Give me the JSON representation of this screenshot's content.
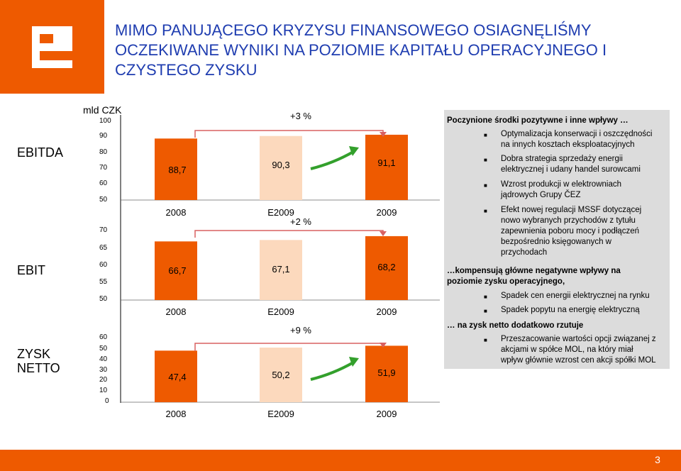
{
  "header": {
    "title_line1": "MIMO PANUJĄCEGO KRYZYSU FINANSOWEGO OSIAGNĘLIŚMY",
    "title_line2": "OCZEKIWANE WYNIKI NA POZIOMIE KAPITAŁU OPERACYJNEGO I",
    "title_line3": "CZYSTEGO ZYSKU",
    "logo_color": "#ee5a00",
    "title_color": "#1f3db0"
  },
  "chart_data": [
    {
      "type": "bar",
      "row_label": "EBITDA",
      "unit": "mld CZK",
      "categories": [
        "2008",
        "E2009",
        "2009"
      ],
      "values": [
        88.7,
        90.3,
        91.1
      ],
      "value_labels": [
        "88,7",
        "90,3",
        "91,1"
      ],
      "yticks": [
        "100",
        "90",
        "80",
        "70",
        "60",
        "50"
      ],
      "growth_label": "+3 %",
      "colors": [
        "#ee5a00",
        "#fcd9bd",
        "#ee5a00"
      ]
    },
    {
      "type": "bar",
      "row_label": "EBIT",
      "categories": [
        "2008",
        "E2009",
        "2009"
      ],
      "values": [
        66.7,
        67.1,
        68.2
      ],
      "value_labels": [
        "66,7",
        "67,1",
        "68,2"
      ],
      "yticks": [
        "70",
        "65",
        "60",
        "55",
        "50"
      ],
      "growth_label": "+2 %",
      "colors": [
        "#ee5a00",
        "#fcd9bd",
        "#ee5a00"
      ]
    },
    {
      "type": "bar",
      "row_label": "ZYSK NETTO",
      "categories": [
        "2008",
        "E2009",
        "2009"
      ],
      "values": [
        47.4,
        50.2,
        51.9
      ],
      "value_labels": [
        "47,4",
        "50,2",
        "51,9"
      ],
      "yticks": [
        "60",
        "50",
        "40",
        "30",
        "20",
        "10",
        "0"
      ],
      "growth_label": "+9 %",
      "colors": [
        "#ee5a00",
        "#fcd9bd",
        "#ee5a00"
      ]
    }
  ],
  "panel": {
    "heading": "Poczynione środki pozytywne i inne wpływy …",
    "positives": [
      [
        "Optymalizacja konserwacji i oszczędności",
        "na innych kosztach eksploatacyjnych"
      ],
      [
        "Dobra strategia sprzedaży energii",
        "elektrycznej i udany handel surowcami"
      ],
      [
        "Wzrost produkcji w elektrowniach",
        "jądrowych Grupy ČEZ"
      ],
      [
        "Efekt nowej regulacji MSSF dotyczącej",
        "nowo wybranych przychodów z tytułu",
        "zapewnienia poboru mocy i podłączeń",
        "bezpośrednio księgowanych w",
        "przychodach"
      ]
    ],
    "compensation_line1": "…kompensują główne negatywne wpływy na",
    "compensation_line2": "poziomie zysku operacyjnego,",
    "negatives": [
      [
        "Spadek cen energii elektrycznej na rynku"
      ],
      [
        "Spadek popytu na energię elektryczną"
      ]
    ],
    "net_heading": "… na zysk netto dodatkowo rzutuje",
    "net_items": [
      [
        "Przeszacowanie wartości opcji związanej z",
        "akcjami w spółce MOL, na który miał",
        "wpływ głównie wzrost cen akcji spółki MOL"
      ]
    ]
  },
  "footer": {
    "page_number": "3"
  }
}
